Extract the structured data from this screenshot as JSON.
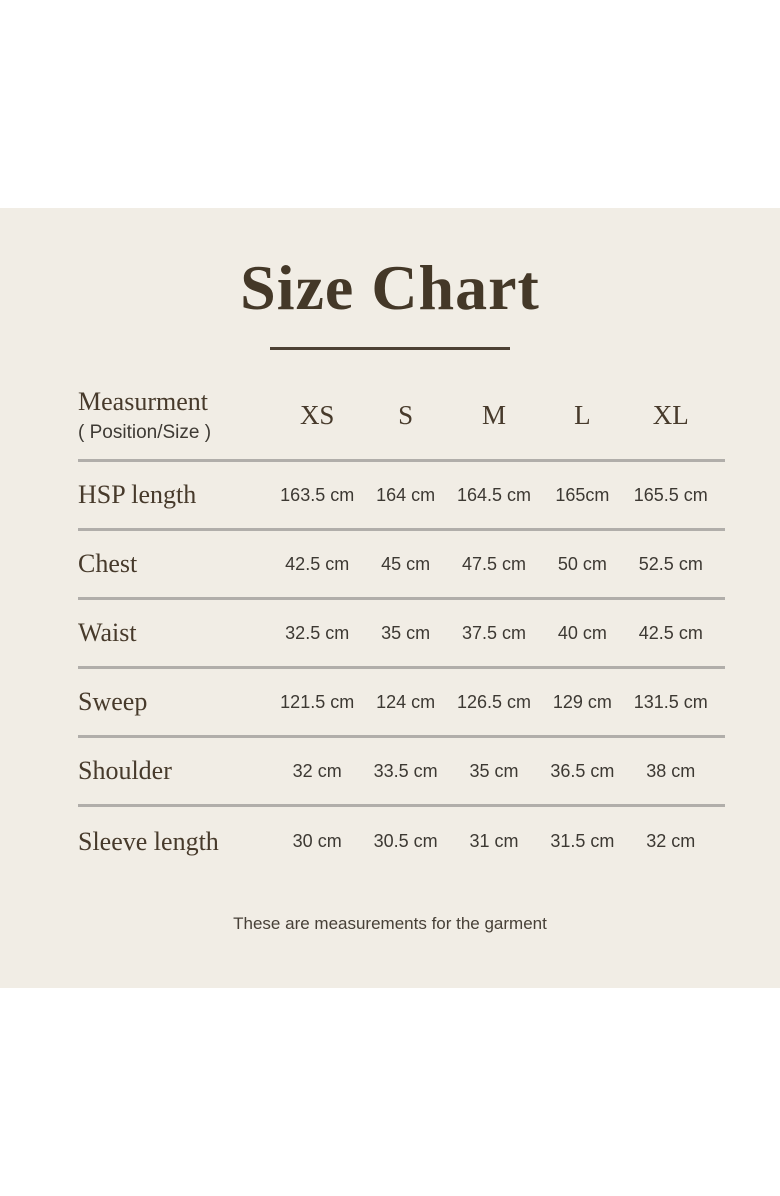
{
  "card": {
    "title": "Size Chart",
    "footer": "These are measurements for the garment"
  },
  "table": {
    "header": {
      "label": "Measurment",
      "sublabel": "( Position/Size )",
      "sizes": [
        "XS",
        "S",
        "M",
        "L",
        "XL"
      ]
    },
    "rows": [
      {
        "label": "HSP length",
        "values": [
          "163.5 cm",
          "164 cm",
          "164.5 cm",
          "165cm",
          "165.5 cm"
        ]
      },
      {
        "label": "Chest",
        "values": [
          "42.5 cm",
          "45 cm",
          "47.5 cm",
          "50 cm",
          "52.5 cm"
        ]
      },
      {
        "label": "Waist",
        "values": [
          "32.5 cm",
          "35 cm",
          "37.5 cm",
          "40 cm",
          "42.5 cm"
        ]
      },
      {
        "label": "Sweep",
        "values": [
          "121.5 cm",
          "124 cm",
          "126.5 cm",
          "129 cm",
          "131.5 cm"
        ]
      },
      {
        "label": "Shoulder",
        "values": [
          "32 cm",
          "33.5 cm",
          "35 cm",
          "36.5 cm",
          "38 cm"
        ]
      },
      {
        "label": "Sleeve length",
        "values": [
          "30 cm",
          "30.5 cm",
          "31 cm",
          "31.5 cm",
          "32 cm"
        ]
      }
    ]
  },
  "colors": {
    "page_background": "#ffffff",
    "card_background": "#f1ede5",
    "title_brown": "#443828",
    "label_brown": "#473a2b",
    "value_text": "#3d3933",
    "rule_gray": "#b1aeaa",
    "underline_brown": "#4d4134"
  },
  "chart_data": {
    "type": "table",
    "title": "Size Chart",
    "row_header": "Measurment ( Position/Size )",
    "columns": [
      "XS",
      "S",
      "M",
      "L",
      "XL"
    ],
    "unit": "cm",
    "rows": [
      {
        "label": "HSP length",
        "values_cm": [
          163.5,
          164,
          164.5,
          165,
          165.5
        ]
      },
      {
        "label": "Chest",
        "values_cm": [
          42.5,
          45,
          47.5,
          50,
          52.5
        ]
      },
      {
        "label": "Waist",
        "values_cm": [
          32.5,
          35,
          37.5,
          40,
          42.5
        ]
      },
      {
        "label": "Sweep",
        "values_cm": [
          121.5,
          124,
          126.5,
          129,
          131.5
        ]
      },
      {
        "label": "Shoulder",
        "values_cm": [
          32,
          33.5,
          35,
          36.5,
          38
        ]
      },
      {
        "label": "Sleeve length",
        "values_cm": [
          30,
          30.5,
          31,
          31.5,
          32
        ]
      }
    ],
    "note": "These are measurements for the garment"
  }
}
